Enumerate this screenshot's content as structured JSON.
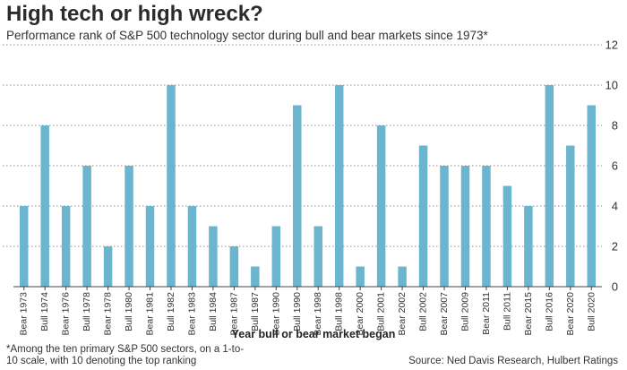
{
  "header": {
    "title": "High tech or high wreck?",
    "subtitle": "Performance rank of S&P 500 technology sector during bull and bear markets since 1973*"
  },
  "footer": {
    "footnote": "*Among the ten primary S&P 500 sectors, on a 1-to-10 scale, with 10 denoting the top ranking",
    "source": "Source: Ned Davis Research, Hulbert Ratings"
  },
  "colors": {
    "bar": "#6bb5cf",
    "grid": "#8a8a8a",
    "axis": "#444444",
    "text": "#333333"
  },
  "chart_data": {
    "type": "bar",
    "title": "High tech or high wreck?",
    "subtitle": "Performance rank of S&P 500 technology sector during bull and bear markets since 1973*",
    "xlabel": "Year bull or bear market began",
    "ylabel": "",
    "ylim": [
      0,
      12
    ],
    "yticks": [
      0,
      2,
      4,
      6,
      8,
      10,
      12
    ],
    "y_axis_side": "right",
    "grid": "horizontal dotted",
    "categories": [
      "Bear 1973",
      "Bull 1974",
      "Bear 1976",
      "Bull 1978",
      "Bear 1978",
      "Bull 1980",
      "Bear 1981",
      "Bull 1982",
      "Bear 1983",
      "Bull 1984",
      "Bear 1987",
      "Bull 1987",
      "Bear 1990",
      "Bull 1990",
      "Bear 1998",
      "Bull 1998",
      "Bear 2000",
      "Bull 2001",
      "Bear 2002",
      "Bull 2002",
      "Bear 2007",
      "Bull 2009",
      "Bear 2011",
      "Bull 2011",
      "Bear 2015",
      "Bull 2016",
      "Bear 2020",
      "Bull 2020"
    ],
    "values": [
      4,
      8,
      4,
      6,
      2,
      6,
      4,
      10,
      4,
      3,
      2,
      1,
      3,
      9,
      3,
      10,
      1,
      8,
      1,
      7,
      6,
      6,
      6,
      5,
      4,
      10,
      7,
      9
    ]
  }
}
